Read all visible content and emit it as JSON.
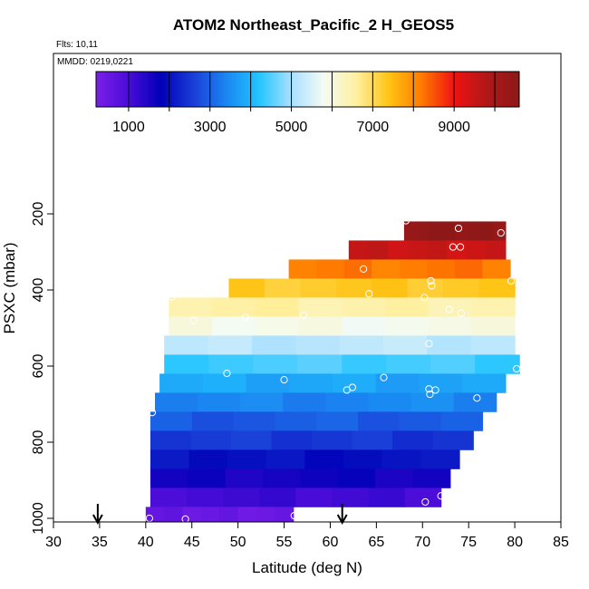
{
  "chart_data": {
    "type": "heatmap",
    "title": "ATOM2 Northeast_Pacific_2 H_GEOS5",
    "subtitle_lines": [
      "Flts: 10,11",
      "MMDD: 0219,0221"
    ],
    "xlabel": "Latitude (deg N)",
    "ylabel": "PSXC (mbar)",
    "xlim": [
      30,
      85
    ],
    "ylim": [
      1000,
      0
    ],
    "x_ticks": [
      30,
      35,
      40,
      45,
      50,
      55,
      60,
      65,
      70,
      75,
      80,
      85
    ],
    "y_ticks": [
      200,
      400,
      600,
      800,
      1000
    ],
    "colorbar": {
      "range": [
        200,
        10600
      ],
      "tick_values": [
        1000,
        3000,
        5000,
        7000,
        9000
      ],
      "breaks": [
        1000,
        2000,
        3000,
        4000,
        5000,
        6000,
        7000,
        8000,
        9000,
        10000
      ],
      "colors": [
        "#7a1fe8",
        "#4a0cd8",
        "#0000b8",
        "#1a3fd8",
        "#1a86f2",
        "#22c5ff",
        "#a9e0ff",
        "#f4fbf4",
        "#fff0a0",
        "#ffc414",
        "#ff7a00",
        "#f01212",
        "#b01818",
        "#8c1818"
      ]
    },
    "pressure_bands": [
      {
        "p_top": 220,
        "p_bot": 270,
        "lat_min": 68.0,
        "lat_max": 79.0,
        "value": 10500
      },
      {
        "p_top": 270,
        "p_bot": 320,
        "lat_min": 62.0,
        "lat_max": 79.0,
        "value": 9500
      },
      {
        "p_top": 320,
        "p_bot": 370,
        "lat_min": 55.5,
        "lat_max": 79.5,
        "value": 8200
      },
      {
        "p_top": 370,
        "p_bot": 420,
        "lat_min": 49.0,
        "lat_max": 80.0,
        "value": 7300
      },
      {
        "p_top": 420,
        "p_bot": 470,
        "lat_min": 42.5,
        "lat_max": 80.0,
        "value": 6500
      },
      {
        "p_top": 470,
        "p_bot": 520,
        "lat_min": 42.5,
        "lat_max": 80.0,
        "value": 5900
      },
      {
        "p_top": 520,
        "p_bot": 570,
        "lat_min": 42.0,
        "lat_max": 80.0,
        "value": 5200
      },
      {
        "p_top": 570,
        "p_bot": 620,
        "lat_min": 42.0,
        "lat_max": 80.5,
        "value": 4400
      },
      {
        "p_top": 620,
        "p_bot": 670,
        "lat_min": 41.5,
        "lat_max": 79.0,
        "value": 3800
      },
      {
        "p_top": 670,
        "p_bot": 720,
        "lat_min": 41.0,
        "lat_max": 78.0,
        "value": 3400
      },
      {
        "p_top": 720,
        "p_bot": 770,
        "lat_min": 40.5,
        "lat_max": 76.5,
        "value": 2900
      },
      {
        "p_top": 770,
        "p_bot": 820,
        "lat_min": 40.5,
        "lat_max": 75.5,
        "value": 2500
      },
      {
        "p_top": 820,
        "p_bot": 870,
        "lat_min": 40.5,
        "lat_max": 74.0,
        "value": 2000
      },
      {
        "p_top": 870,
        "p_bot": 920,
        "lat_min": 40.5,
        "lat_max": 73.0,
        "value": 1600
      },
      {
        "p_top": 920,
        "p_bot": 970,
        "lat_min": 40.5,
        "lat_max": 72.0,
        "value": 1100
      },
      {
        "p_top": 970,
        "p_bot": 1020,
        "lat_min": 40.0,
        "lat_max": 56.0,
        "value": 500
      }
    ],
    "points": [
      {
        "lat": 68.2,
        "p": 218
      },
      {
        "lat": 73.9,
        "p": 238
      },
      {
        "lat": 78.5,
        "p": 250
      },
      {
        "lat": 73.3,
        "p": 287
      },
      {
        "lat": 74.1,
        "p": 287
      },
      {
        "lat": 63.6,
        "p": 345
      },
      {
        "lat": 70.9,
        "p": 376
      },
      {
        "lat": 79.6,
        "p": 376
      },
      {
        "lat": 71.0,
        "p": 389
      },
      {
        "lat": 64.2,
        "p": 410
      },
      {
        "lat": 42.8,
        "p": 418
      },
      {
        "lat": 70.2,
        "p": 420
      },
      {
        "lat": 72.9,
        "p": 451
      },
      {
        "lat": 74.2,
        "p": 461
      },
      {
        "lat": 57.1,
        "p": 466
      },
      {
        "lat": 50.8,
        "p": 472
      },
      {
        "lat": 45.2,
        "p": 480
      },
      {
        "lat": 70.7,
        "p": 541
      },
      {
        "lat": 80.2,
        "p": 607
      },
      {
        "lat": 48.8,
        "p": 619
      },
      {
        "lat": 65.8,
        "p": 630
      },
      {
        "lat": 55.0,
        "p": 636
      },
      {
        "lat": 62.4,
        "p": 656
      },
      {
        "lat": 61.8,
        "p": 663
      },
      {
        "lat": 70.7,
        "p": 660
      },
      {
        "lat": 71.4,
        "p": 663
      },
      {
        "lat": 70.8,
        "p": 674
      },
      {
        "lat": 75.9,
        "p": 684
      },
      {
        "lat": 40.7,
        "p": 722
      },
      {
        "lat": 72.0,
        "p": 941
      },
      {
        "lat": 70.3,
        "p": 957
      },
      {
        "lat": 56.1,
        "p": 993
      },
      {
        "lat": 40.4,
        "p": 1000
      },
      {
        "lat": 44.3,
        "p": 1002
      }
    ],
    "markers": [
      {
        "lat": 34.8,
        "label": "arrow"
      },
      {
        "lat": 61.3,
        "label": "arrow"
      }
    ]
  }
}
